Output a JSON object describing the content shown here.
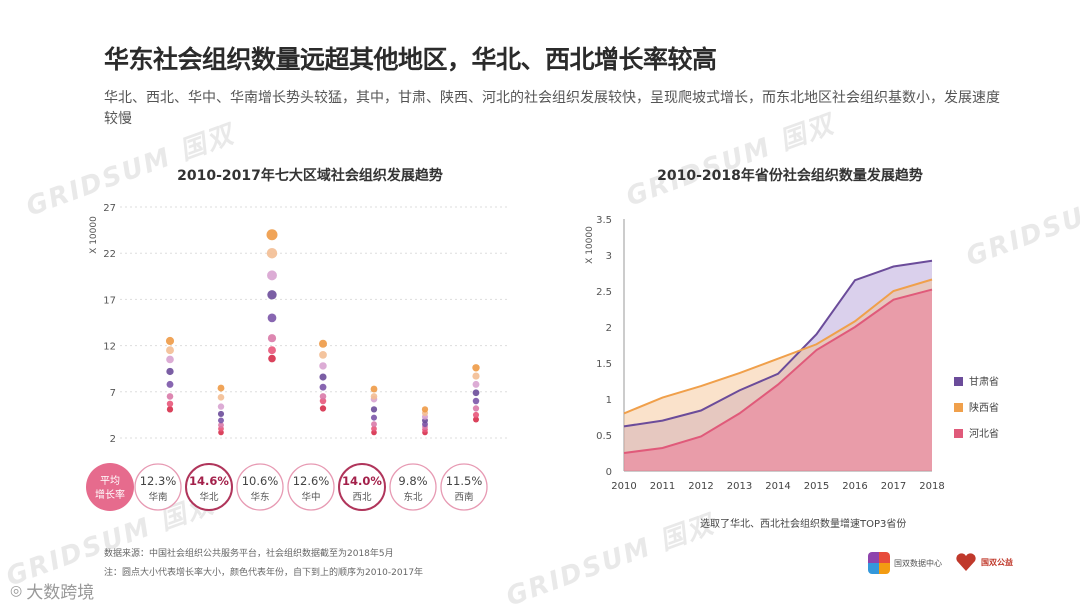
{
  "header": {
    "title": "华东社会组织数量远超其他地区，华北、西北增长率较高",
    "subtitle": "华北、西北、华中、华南增长势头较猛，其中，甘肃、陕西、河北的社会组织发展较快，呈现爬坡式增长，而东北地区社会组织基数小，发展速度较慢"
  },
  "watermark": {
    "text": "GRIDSUM 国双"
  },
  "chart_data": [
    {
      "type": "scatter",
      "title": "2010-2017年七大区域社会组织发展趋势",
      "ylabel": "X 10000",
      "ylim": [
        2,
        27
      ],
      "yticks": [
        2,
        7,
        12,
        17,
        22,
        27
      ],
      "categories": [
        "华南",
        "华北",
        "华东",
        "华中",
        "西北",
        "东北",
        "西南"
      ],
      "years": [
        2010,
        2011,
        2012,
        2013,
        2014,
        2015,
        2016,
        2017
      ],
      "series": [
        {
          "name": "华南",
          "values": [
            5.1,
            5.7,
            6.5,
            7.8,
            9.2,
            10.5,
            11.5,
            12.5
          ]
        },
        {
          "name": "华北",
          "values": [
            2.6,
            3.0,
            3.4,
            3.9,
            4.6,
            5.4,
            6.4,
            7.4
          ]
        },
        {
          "name": "华东",
          "values": [
            10.6,
            11.5,
            12.8,
            15.0,
            17.5,
            19.6,
            22.0,
            24.0
          ]
        },
        {
          "name": "华中",
          "values": [
            5.2,
            6.0,
            6.5,
            7.5,
            8.6,
            9.8,
            11.0,
            12.2
          ]
        },
        {
          "name": "西北",
          "values": [
            2.6,
            3.0,
            3.5,
            4.2,
            5.1,
            6.2,
            6.5,
            7.3
          ]
        },
        {
          "name": "东北",
          "values": [
            2.6,
            2.9,
            3.2,
            3.5,
            3.9,
            4.3,
            4.7,
            5.1
          ]
        },
        {
          "name": "西南",
          "values": [
            4.0,
            4.5,
            5.2,
            6.0,
            6.9,
            7.8,
            8.7,
            9.6
          ]
        }
      ],
      "growth": {
        "label": "平均增长率",
        "items": [
          {
            "rate": "12.3%",
            "region": "华南",
            "highlight": false
          },
          {
            "rate": "14.6%",
            "region": "华北",
            "highlight": true
          },
          {
            "rate": "10.6%",
            "region": "华东",
            "highlight": false
          },
          {
            "rate": "12.6%",
            "region": "华中",
            "highlight": false
          },
          {
            "rate": "14.0%",
            "region": "西北",
            "highlight": true
          },
          {
            "rate": "9.8%",
            "region": "东北",
            "highlight": false
          },
          {
            "rate": "11.5%",
            "region": "西南",
            "highlight": false
          }
        ]
      }
    },
    {
      "type": "area",
      "title": "2010-2018年省份社会组织数量发展趋势",
      "ylabel": "X 10000",
      "ylim": [
        0,
        3.5
      ],
      "yticks": [
        "0",
        "0.5",
        "1",
        "1.5",
        "2",
        "2.5",
        "3",
        "3.5"
      ],
      "x": [
        2010,
        2011,
        2012,
        2013,
        2014,
        2015,
        2016,
        2017,
        2018
      ],
      "series": [
        {
          "name": "甘肃省",
          "color": "#6b4c9a",
          "values": [
            0.62,
            0.7,
            0.84,
            1.12,
            1.35,
            1.9,
            2.65,
            2.84,
            2.92
          ]
        },
        {
          "name": "陕西省",
          "color": "#f0a04b",
          "values": [
            0.8,
            1.02,
            1.18,
            1.36,
            1.56,
            1.76,
            2.08,
            2.5,
            2.66
          ]
        },
        {
          "name": "河北省",
          "color": "#e05a7a",
          "values": [
            0.25,
            0.32,
            0.48,
            0.8,
            1.2,
            1.68,
            2.0,
            2.38,
            2.52
          ]
        }
      ],
      "note": "选取了华北、西北社会组织数量增速TOP3省份"
    }
  ],
  "footer": {
    "source": "数据来源：中国社会组织公共服务平台，社会组织数据截至为2018年5月",
    "note": "注：圆点大小代表增长率大小，颜色代表年份，自下到上的顺序为2010-2017年",
    "logo1": "国双数据中心",
    "logo2": "国双公益",
    "brand": "大数跨境"
  }
}
